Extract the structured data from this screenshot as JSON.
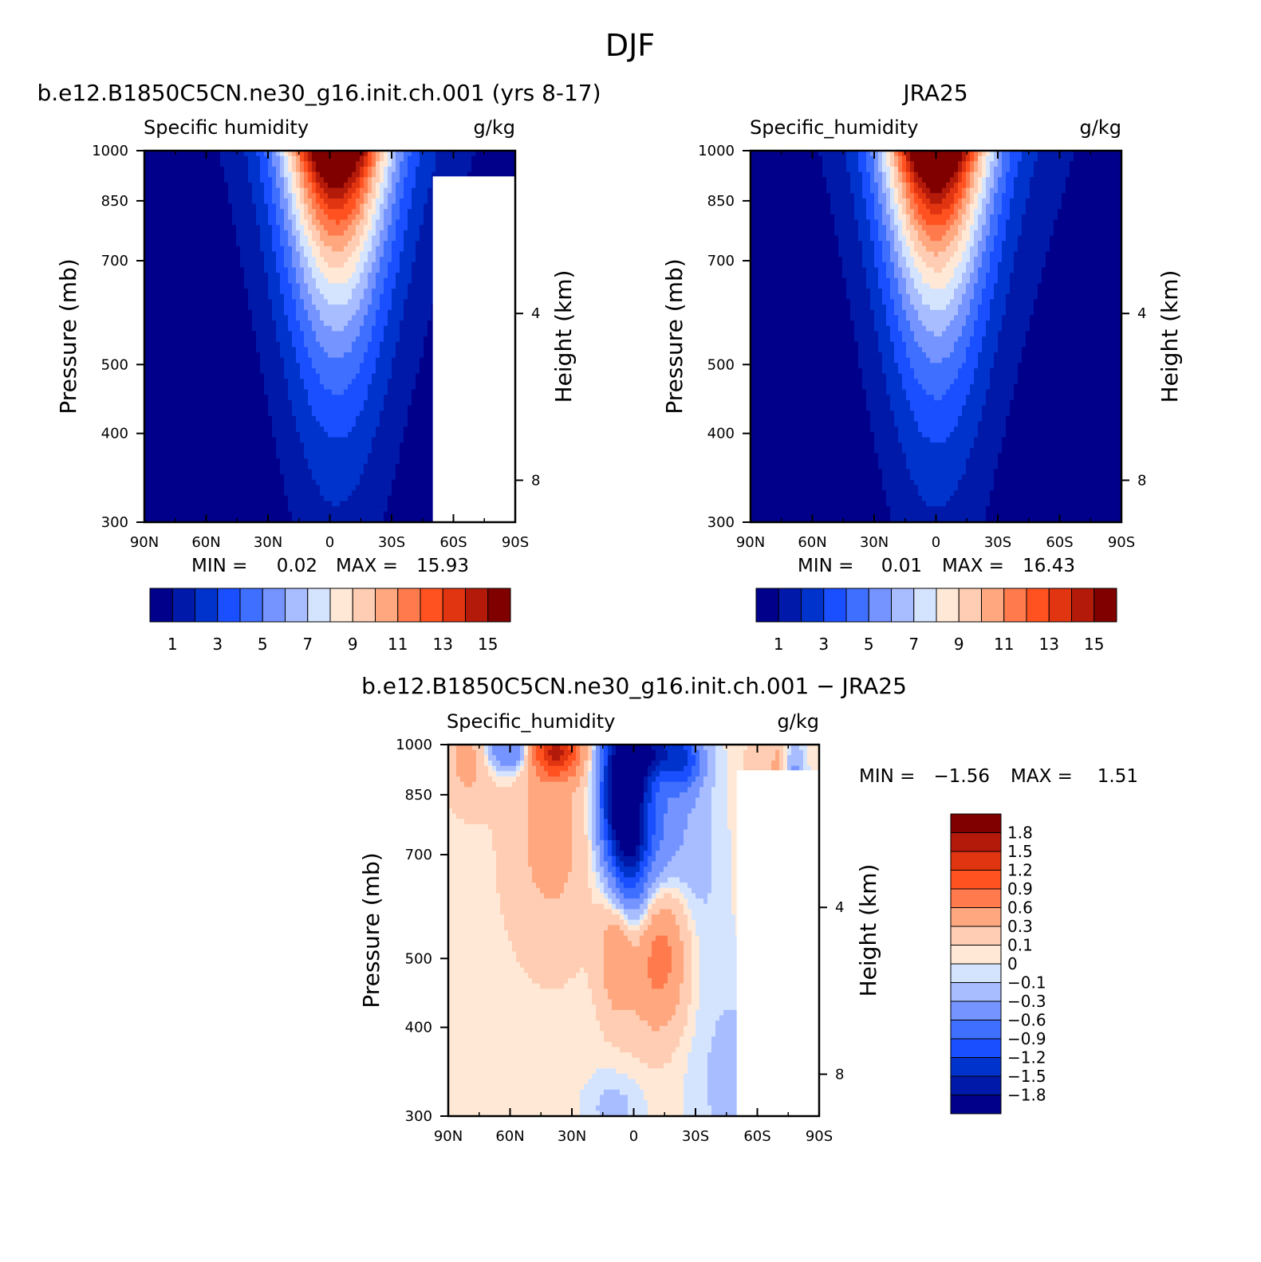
{
  "figure": {
    "title": "DJF"
  },
  "colors": {
    "seq": [
      "#00008b",
      "#0019a8",
      "#0033cc",
      "#1a4fff",
      "#3f6fff",
      "#7594ff",
      "#a8bdff",
      "#d4e4ff",
      "#ffe9d6",
      "#ffcdb3",
      "#ffa880",
      "#ff7a4d",
      "#ff5220",
      "#e03510",
      "#b31a0a",
      "#800000"
    ],
    "diff": [
      "#00008b",
      "#0019a8",
      "#0033cc",
      "#1a4fff",
      "#3f6fff",
      "#7594ff",
      "#a8bdff",
      "#d4e4ff",
      "#ffe9d6",
      "#ffcdb3",
      "#ffa880",
      "#ff7a4d",
      "#ff5220",
      "#e03510",
      "#b31a0a",
      "#800000"
    ]
  },
  "chart_data": [
    {
      "type": "heatmap",
      "title": "b.e12.B1850C5CN.ne30_g16.init.ch.001 (yrs 8-17)",
      "left_string": "Specific humidity",
      "right_string": "g/kg",
      "xlabel": "",
      "ylabel": "Pressure (mb)",
      "y2label": "Height (km)",
      "x_ticks": [
        "90N",
        "60N",
        "30N",
        "0",
        "30S",
        "60S",
        "90S"
      ],
      "y_ticks": [
        "300",
        "400",
        "500",
        "700",
        "850",
        "1000"
      ],
      "y2_ticks": [
        "8",
        "4"
      ],
      "xlim": [
        90,
        -90
      ],
      "ylim": [
        1000,
        300
      ],
      "y_scale": "log",
      "min_label": "MIN =",
      "min_value": "0.02",
      "max_label": "MAX =",
      "max_value": "15.93",
      "peak": 15.93,
      "peak_lat": -3,
      "colorbar_labels": [
        "1",
        "3",
        "5",
        "7",
        "9",
        "11",
        "13",
        "15"
      ],
      "colorbar_levels": [
        1,
        2,
        3,
        4,
        5,
        6,
        7,
        8,
        9,
        10,
        11,
        12,
        13,
        14,
        15
      ]
    },
    {
      "type": "heatmap",
      "title": "JRA25",
      "left_string": "Specific_humidity",
      "right_string": "g/kg",
      "xlabel": "",
      "ylabel": "Pressure (mb)",
      "y2label": "Height (km)",
      "x_ticks": [
        "90N",
        "60N",
        "30N",
        "0",
        "30S",
        "60S",
        "90S"
      ],
      "y_ticks": [
        "300",
        "400",
        "500",
        "700",
        "850",
        "1000"
      ],
      "y2_ticks": [
        "8",
        "4"
      ],
      "xlim": [
        90,
        -90
      ],
      "ylim": [
        1000,
        300
      ],
      "y_scale": "log",
      "min_label": "MIN =",
      "min_value": "0.01",
      "max_label": "MAX =",
      "max_value": "16.43",
      "peak": 16.43,
      "peak_lat": 0,
      "colorbar_labels": [
        "1",
        "3",
        "5",
        "7",
        "9",
        "11",
        "13",
        "15"
      ],
      "colorbar_levels": [
        1,
        2,
        3,
        4,
        5,
        6,
        7,
        8,
        9,
        10,
        11,
        12,
        13,
        14,
        15
      ]
    },
    {
      "type": "heatmap",
      "title": "b.e12.B1850C5CN.ne30_g16.init.ch.001 − JRA25",
      "left_string": "Specific_humidity",
      "right_string": "g/kg",
      "xlabel": "",
      "ylabel": "Pressure (mb)",
      "y2label": "Height (km)",
      "x_ticks": [
        "90N",
        "60N",
        "30N",
        "0",
        "30S",
        "60S",
        "90S"
      ],
      "y_ticks": [
        "300",
        "400",
        "500",
        "700",
        "850",
        "1000"
      ],
      "y2_ticks": [
        "8",
        "4"
      ],
      "xlim": [
        90,
        -90
      ],
      "ylim": [
        1000,
        300
      ],
      "y_scale": "log",
      "min_label": "MIN =",
      "min_value": "−1.56",
      "max_label": "MAX =",
      "max_value": "1.51",
      "colorbar_labels": [
        "1.8",
        "1.5",
        "1.2",
        "0.9",
        "0.6",
        "0.3",
        "0.1",
        "0",
        "−0.1",
        "−0.3",
        "−0.6",
        "−0.9",
        "−1.2",
        "−1.5",
        "−1.8"
      ],
      "colorbar_levels": [
        -1.8,
        -1.5,
        -1.2,
        -0.9,
        -0.6,
        -0.3,
        -0.1,
        0,
        0.1,
        0.3,
        0.6,
        0.9,
        1.2,
        1.5,
        1.8
      ],
      "features": [
        {
          "lat": 40,
          "p": 740,
          "amp": 0.35,
          "wlat": 14,
          "wlnp": 0.25
        },
        {
          "lat": 38,
          "p": 980,
          "amp": 1.4,
          "wlat": 9,
          "wlnp": 0.06
        },
        {
          "lat": 60,
          "p": 980,
          "amp": -0.8,
          "wlat": 8,
          "wlnp": 0.05
        },
        {
          "lat": 2,
          "p": 820,
          "amp": -1.5,
          "wlat": 6,
          "wlnp": 0.22
        },
        {
          "lat": 10,
          "p": 850,
          "amp": -1.1,
          "wlat": 6,
          "wlnp": 0.15
        },
        {
          "lat": -5,
          "p": 760,
          "amp": -0.9,
          "wlat": 12,
          "wlnp": 0.25
        },
        {
          "lat": -8,
          "p": 980,
          "amp": -1.2,
          "wlat": 12,
          "wlnp": 0.06
        },
        {
          "lat": -25,
          "p": 940,
          "amp": -0.7,
          "wlat": 6,
          "wlnp": 0.07
        },
        {
          "lat": -12,
          "p": 520,
          "amp": 0.9,
          "wlat": 10,
          "wlnp": 0.18
        },
        {
          "lat": 8,
          "p": 520,
          "amp": 0.6,
          "wlat": 6,
          "wlnp": 0.15
        },
        {
          "lat": -30,
          "p": 680,
          "amp": -0.2,
          "wlat": 10,
          "wlnp": 0.3
        },
        {
          "lat": -55,
          "p": 330,
          "amp": -0.25,
          "wlat": 18,
          "wlnp": 0.25
        },
        {
          "lat": 10,
          "p": 310,
          "amp": -0.2,
          "wlat": 10,
          "wlnp": 0.08
        },
        {
          "lat": -80,
          "p": 620,
          "amp": -0.3,
          "wlat": 8,
          "wlnp": 0.2
        },
        {
          "lat": -70,
          "p": 820,
          "amp": 0.4,
          "wlat": 3,
          "wlnp": 0.2
        },
        {
          "lat": -78,
          "p": 820,
          "amp": -0.5,
          "wlat": 3,
          "wlnp": 0.15
        },
        {
          "lat": -60,
          "p": 780,
          "amp": 0.3,
          "wlat": 4,
          "wlnp": 0.2
        },
        {
          "lat": 80,
          "p": 950,
          "amp": 0.35,
          "wlat": 8,
          "wlnp": 0.1
        }
      ]
    }
  ]
}
